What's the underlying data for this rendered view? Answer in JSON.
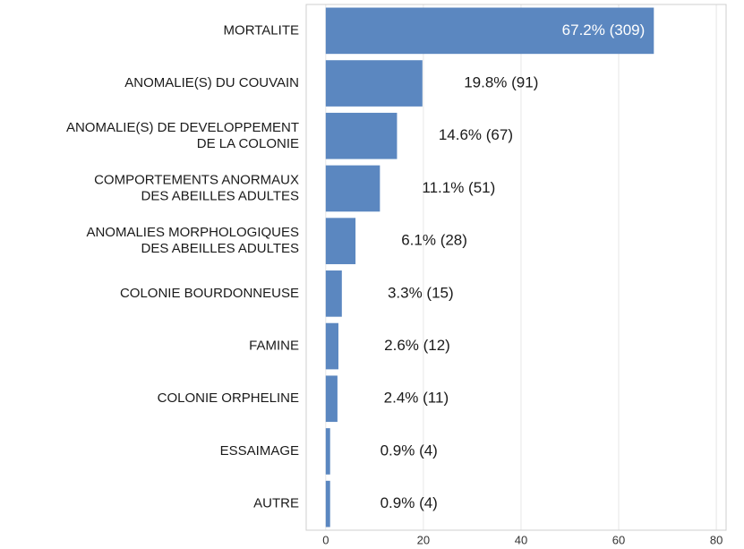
{
  "chart_data": {
    "type": "bar",
    "orientation": "horizontal",
    "categories": [
      "MORTALITE",
      "ANOMALIE(S) DU COUVAIN",
      "ANOMALIE(S) DE DEVELOPPEMENT\nDE LA COLONIE",
      "COMPORTEMENTS ANORMAUX\nDES ABEILLES ADULTES",
      "ANOMALIES MORPHOLOGIQUES\nDES ABEILLES ADULTES",
      "COLONIE BOURDONNEUSE",
      "FAMINE",
      "COLONIE ORPHELINE",
      "ESSAIMAGE",
      "AUTRE"
    ],
    "values": [
      67.2,
      19.8,
      14.6,
      11.1,
      6.1,
      3.3,
      2.6,
      2.4,
      0.9,
      0.9
    ],
    "value_labels": [
      "67.2% (309)",
      "19.8% (91)",
      "14.6% (67)",
      "11.1% (51)",
      "6.1% (28)",
      "3.3% (15)",
      "2.6% (12)",
      "2.4% (11)",
      "0.9% (4)",
      "0.9% (4)"
    ],
    "color": "#5b87c0",
    "xlim": [
      -4,
      82
    ],
    "xticks": [
      0,
      20,
      40,
      60,
      80
    ],
    "grid": true
  }
}
